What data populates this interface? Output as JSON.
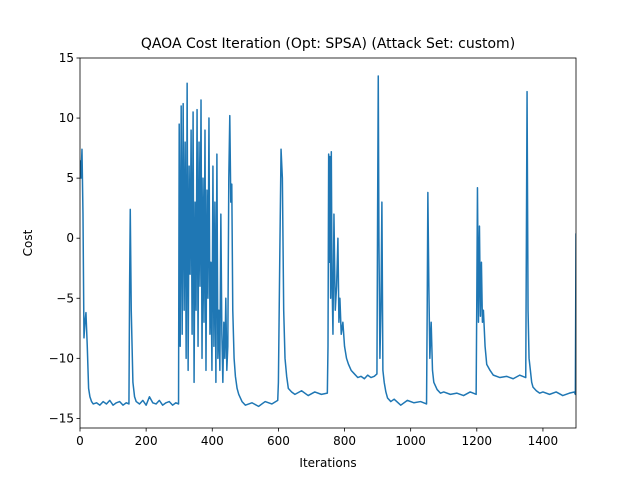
{
  "chart_data": {
    "type": "line",
    "title": "QAOA Cost Iteration (Opt: SPSA) (Attack Set: custom)",
    "xlabel": "Iterations",
    "ylabel": "Cost",
    "xlim": [
      0,
      1500
    ],
    "ylim": [
      -15.8,
      15
    ],
    "xticks": [
      0,
      200,
      400,
      600,
      800,
      1000,
      1200,
      1400
    ],
    "yticks": [
      {
        "value": -15,
        "label": "−15"
      },
      {
        "value": -10,
        "label": "−10"
      },
      {
        "value": -5,
        "label": "−5"
      },
      0,
      5,
      10,
      15
    ],
    "color": "#1f77b4",
    "x": [
      0,
      3,
      6,
      9,
      12,
      15,
      18,
      22,
      26,
      30,
      35,
      40,
      50,
      60,
      70,
      80,
      90,
      100,
      110,
      120,
      130,
      140,
      148,
      150,
      152,
      155,
      160,
      165,
      170,
      180,
      190,
      200,
      210,
      220,
      230,
      240,
      250,
      260,
      270,
      280,
      290,
      298,
      300,
      303,
      306,
      309,
      312,
      315,
      318,
      321,
      324,
      327,
      330,
      333,
      336,
      339,
      342,
      345,
      348,
      351,
      354,
      357,
      360,
      363,
      366,
      369,
      372,
      375,
      378,
      381,
      384,
      387,
      390,
      393,
      396,
      399,
      402,
      405,
      408,
      411,
      414,
      417,
      420,
      423,
      426,
      429,
      432,
      435,
      438,
      441,
      444,
      447,
      450,
      453,
      456,
      459,
      462,
      466,
      470,
      475,
      480,
      490,
      500,
      520,
      540,
      560,
      580,
      598,
      600,
      604,
      608,
      612,
      616,
      620,
      625,
      630,
      640,
      650,
      670,
      690,
      710,
      730,
      748,
      750,
      752,
      754,
      756,
      758,
      760,
      762,
      765,
      768,
      772,
      776,
      780,
      783,
      786,
      790,
      795,
      800,
      806,
      812,
      820,
      830,
      840,
      850,
      860,
      870,
      880,
      890,
      898,
      900,
      902,
      904,
      907,
      910,
      913,
      916,
      920,
      925,
      930,
      940,
      950,
      970,
      990,
      1010,
      1030,
      1048,
      1050,
      1052,
      1055,
      1058,
      1062,
      1066,
      1070,
      1080,
      1090,
      1100,
      1120,
      1140,
      1160,
      1180,
      1198,
      1200,
      1202,
      1205,
      1208,
      1211,
      1214,
      1217,
      1220,
      1225,
      1230,
      1240,
      1250,
      1270,
      1290,
      1310,
      1330,
      1348,
      1350,
      1352,
      1355,
      1358,
      1362,
      1366,
      1370,
      1380,
      1390,
      1400,
      1420,
      1440,
      1460,
      1480,
      1495,
      1498,
      1500
    ],
    "values": [
      6.5,
      5,
      7.4,
      2,
      -8.3,
      -7,
      -6.2,
      -9,
      -12.5,
      -13.2,
      -13.6,
      -13.8,
      -13.7,
      -13.9,
      -13.6,
      -13.8,
      -13.5,
      -13.9,
      -13.7,
      -13.6,
      -13.9,
      -13.7,
      -13.8,
      -4,
      2.4,
      -6,
      -12,
      -13.2,
      -13.6,
      -13.8,
      -13.5,
      -13.9,
      -13.2,
      -13.7,
      -13.8,
      -13.5,
      -13.9,
      -13.7,
      -13.6,
      -13.9,
      -13.7,
      -13.8,
      9.5,
      -9,
      11,
      -8,
      11.2,
      -6,
      8,
      -10,
      12.9,
      -11,
      6,
      -3,
      9,
      -8,
      10.5,
      -12,
      3,
      -6,
      10.7,
      -9,
      8,
      -4,
      11.5,
      -10,
      5,
      -7,
      9,
      -11,
      4,
      -5,
      10,
      -8,
      -2,
      -11,
      6,
      -9,
      3,
      -12,
      7,
      -10,
      -6,
      -11,
      2,
      -8,
      -12,
      -7,
      -10,
      -5,
      -11,
      -9,
      5,
      10.2,
      3,
      4.5,
      -6,
      -10,
      -11.5,
      -12.5,
      -13,
      -13.6,
      -13.9,
      -13.7,
      -14,
      -13.6,
      -13.8,
      -13.5,
      -12,
      -2,
      7.4,
      5,
      -6,
      -10,
      -11.5,
      -12.5,
      -12.8,
      -13,
      -12.7,
      -13.1,
      -12.8,
      -13,
      -12.9,
      -9,
      7,
      -2,
      6.8,
      -5,
      7.2,
      -3,
      -8,
      2,
      -6,
      -4,
      0,
      -7,
      -5,
      -8,
      -7,
      -9,
      -10,
      -10.5,
      -11,
      -11.3,
      -11.6,
      -11.5,
      -11.7,
      -11.4,
      -11.6,
      -11.5,
      -11.3,
      2,
      13.5,
      0,
      -10,
      -6,
      3,
      -11,
      -12,
      -12.8,
      -13.3,
      -13.6,
      -13.4,
      -13.9,
      -13.5,
      -13.7,
      -13.6,
      -13.8,
      -6,
      3.8,
      -4,
      -10,
      -7,
      -11,
      -12,
      -12.6,
      -12.9,
      -12.8,
      -13,
      -12.9,
      -13.1,
      -12.8,
      -13,
      -5,
      4.2,
      -7,
      1,
      -6.5,
      -2,
      -7,
      -6,
      -9,
      -10.5,
      -11,
      -11.4,
      -11.6,
      -11.5,
      -11.7,
      -11.4,
      -11.6,
      0,
      12.2,
      -6,
      -10,
      -11,
      -12,
      -12.4,
      -12.7,
      -12.9,
      -12.8,
      -13,
      -12.8,
      -13.1,
      -12.9,
      -12.8,
      -13,
      0.4
    ]
  }
}
